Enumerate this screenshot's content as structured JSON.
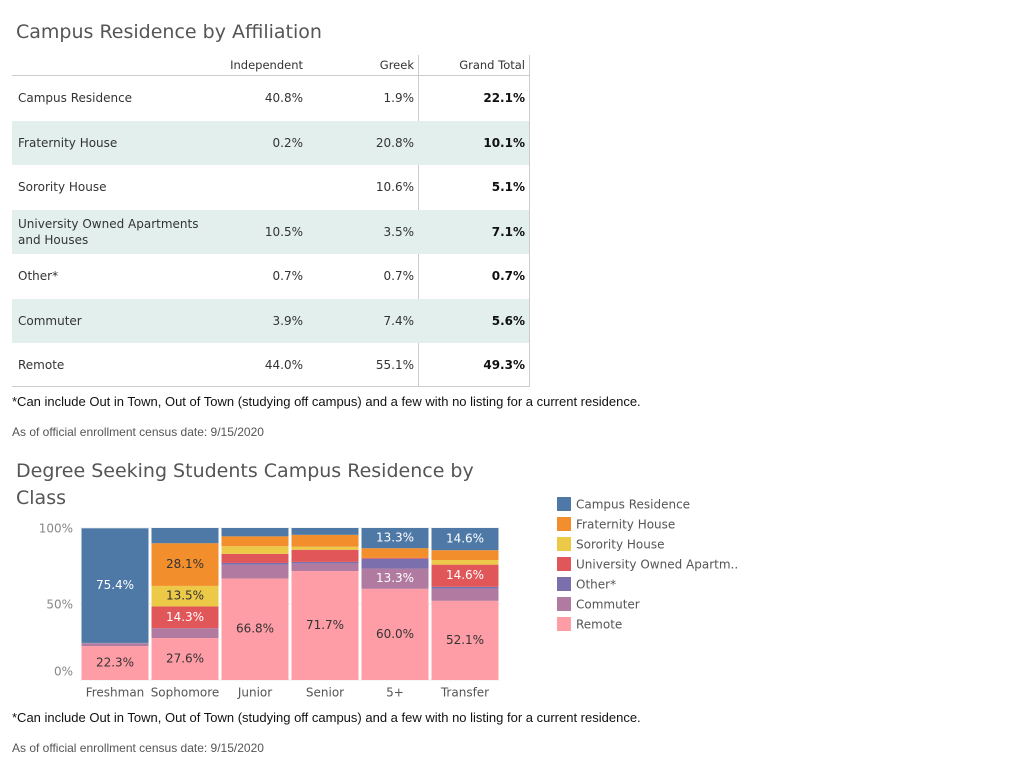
{
  "table": {
    "title": "Campus Residence by Affiliation",
    "columns": [
      "Independent",
      "Greek",
      "Grand Total"
    ],
    "rows": [
      {
        "label": "Campus Residence",
        "cells": [
          "40.8%",
          "1.9%",
          "22.1%"
        ]
      },
      {
        "label": "Fraternity House",
        "cells": [
          "0.2%",
          "20.8%",
          "10.1%"
        ]
      },
      {
        "label": "Sorority House",
        "cells": [
          null,
          "10.6%",
          "5.1%"
        ]
      },
      {
        "label": "University Owned Apartments and Houses",
        "cells": [
          "10.5%",
          "3.5%",
          "7.1%"
        ]
      },
      {
        "label": "Other*",
        "cells": [
          "0.7%",
          "0.7%",
          "0.7%"
        ]
      },
      {
        "label": "Commuter",
        "cells": [
          "3.9%",
          "7.4%",
          "5.6%"
        ]
      },
      {
        "label": "Remote",
        "cells": [
          "44.0%",
          "55.1%",
          "49.3%"
        ]
      }
    ],
    "footnote": "*Can include Out in Town, Out of Town (studying off campus) and a few with no listing for a current residence.",
    "census_date": "As of official enrollment census date: 9/15/2020"
  },
  "chart_data": {
    "type": "stacked_bar",
    "title": "Degree Seeking Students Campus Residence by Class",
    "categories": [
      "Freshman",
      "Sophomore",
      "Junior",
      "Senior",
      "5+",
      "Transfer"
    ],
    "ylim": [
      0,
      100
    ],
    "yticks": [
      {
        "value": 0,
        "label": "0%"
      },
      {
        "value": 50,
        "label": "50%"
      },
      {
        "value": 100,
        "label": "100%"
      }
    ],
    "grid": true,
    "legend": "right",
    "series": [
      {
        "name": "Remote",
        "color": "#ff9da7",
        "values": [
          22.3,
          27.6,
          66.8,
          71.7,
          60.0,
          52.1
        ],
        "value_labels": [
          "22.3%",
          "27.6%",
          "66.8%",
          "71.7%",
          "60.0%",
          "52.1%"
        ]
      },
      {
        "name": "Commuter",
        "color": "#b07aa1",
        "values": [
          1.5,
          6.5,
          9.0,
          5.0,
          13.3,
          8.0
        ],
        "value_labels": [
          null,
          null,
          null,
          null,
          "13.3%",
          null
        ]
      },
      {
        "name": "Other*",
        "color": "#7c6fae",
        "values": [
          0.4,
          0,
          1.2,
          1.0,
          6.5,
          1.2
        ],
        "value_labels": [
          null,
          null,
          null,
          null,
          null,
          null
        ]
      },
      {
        "name": "University Owned Apartm..",
        "color": "#e15759",
        "values": [
          0.2,
          14.3,
          6.0,
          8.0,
          0.5,
          14.6
        ],
        "value_labels": [
          null,
          "14.3%",
          null,
          null,
          null,
          "14.6%"
        ]
      },
      {
        "name": "Sorority House",
        "color": "#edc948",
        "values": [
          0,
          13.5,
          5.0,
          2.0,
          0,
          3.0
        ],
        "value_labels": [
          null,
          "13.5%",
          null,
          null,
          null,
          null
        ]
      },
      {
        "name": "Fraternity House",
        "color": "#f28e2b",
        "values": [
          0,
          28.1,
          6.5,
          7.8,
          6.4,
          6.5
        ],
        "value_labels": [
          null,
          "28.1%",
          null,
          null,
          null,
          null
        ]
      },
      {
        "name": "Campus Residence",
        "color": "#4e79a7",
        "values": [
          75.4,
          10.0,
          5.5,
          4.5,
          13.3,
          14.6
        ],
        "value_labels": [
          "75.4%",
          null,
          null,
          null,
          "13.3%",
          "14.6%"
        ]
      }
    ],
    "footnote": "*Can include Out in Town, Out of Town (studying off campus) and a few with no listing for a current residence.",
    "census_date": "As of official enrollment census date: 9/15/2020"
  }
}
